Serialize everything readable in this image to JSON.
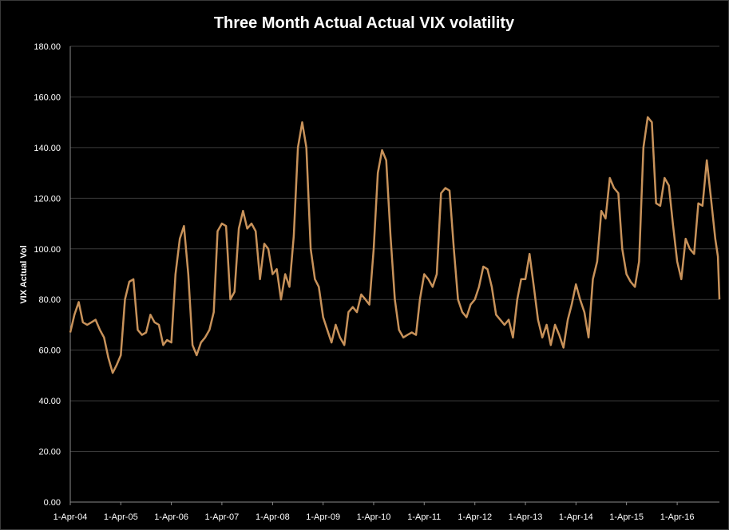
{
  "chart_data": {
    "type": "line",
    "title": "Three Month Actual Actual VIX volatility",
    "xlabel": "",
    "ylabel": "VIX Actual Vol",
    "ylim": [
      0,
      180
    ],
    "yticks": [
      "0.00",
      "20.00",
      "40.00",
      "60.00",
      "80.00",
      "100.00",
      "120.00",
      "140.00",
      "160.00",
      "180.00"
    ],
    "xticks": [
      "1-Apr-04",
      "1-Apr-05",
      "1-Apr-06",
      "1-Apr-07",
      "1-Apr-08",
      "1-Apr-09",
      "1-Apr-10",
      "1-Apr-11",
      "1-Apr-12",
      "1-Apr-13",
      "1-Apr-14",
      "1-Apr-15",
      "1-Apr-16"
    ],
    "x_start": "2004-04-01",
    "x_end": "2017-01-31",
    "grid": true,
    "legend": "none",
    "line_color": "#c8925a",
    "series": [
      {
        "values": [
          [
            "2004-04-01",
            67
          ],
          [
            "2004-05-01",
            74
          ],
          [
            "2004-06-01",
            79
          ],
          [
            "2004-07-01",
            71
          ],
          [
            "2004-08-01",
            70
          ],
          [
            "2004-09-01",
            71
          ],
          [
            "2004-10-01",
            72
          ],
          [
            "2004-11-01",
            68
          ],
          [
            "2004-12-01",
            65
          ],
          [
            "2005-01-01",
            57
          ],
          [
            "2005-02-01",
            51
          ],
          [
            "2005-03-01",
            54
          ],
          [
            "2005-04-01",
            58
          ],
          [
            "2005-05-01",
            80
          ],
          [
            "2005-06-01",
            87
          ],
          [
            "2005-07-01",
            88
          ],
          [
            "2005-08-01",
            68
          ],
          [
            "2005-09-01",
            66
          ],
          [
            "2005-10-01",
            67
          ],
          [
            "2005-11-01",
            74
          ],
          [
            "2005-12-01",
            71
          ],
          [
            "2006-01-01",
            70
          ],
          [
            "2006-02-01",
            62
          ],
          [
            "2006-03-01",
            64
          ],
          [
            "2006-04-01",
            63
          ],
          [
            "2006-05-01",
            90
          ],
          [
            "2006-06-01",
            104
          ],
          [
            "2006-07-01",
            109
          ],
          [
            "2006-08-01",
            90
          ],
          [
            "2006-09-01",
            62
          ],
          [
            "2006-10-01",
            58
          ],
          [
            "2006-11-01",
            63
          ],
          [
            "2006-12-01",
            65
          ],
          [
            "2007-01-01",
            68
          ],
          [
            "2007-02-01",
            75
          ],
          [
            "2007-03-01",
            107
          ],
          [
            "2007-04-01",
            110
          ],
          [
            "2007-05-01",
            109
          ],
          [
            "2007-06-01",
            80
          ],
          [
            "2007-07-01",
            83
          ],
          [
            "2007-08-01",
            108
          ],
          [
            "2007-09-01",
            115
          ],
          [
            "2007-10-01",
            108
          ],
          [
            "2007-11-01",
            110
          ],
          [
            "2007-12-01",
            107
          ],
          [
            "2008-01-01",
            88
          ],
          [
            "2008-02-01",
            102
          ],
          [
            "2008-03-01",
            100
          ],
          [
            "2008-04-01",
            90
          ],
          [
            "2008-05-01",
            92
          ],
          [
            "2008-06-01",
            80
          ],
          [
            "2008-07-01",
            90
          ],
          [
            "2008-08-01",
            85
          ],
          [
            "2008-09-01",
            105
          ],
          [
            "2008-10-01",
            140
          ],
          [
            "2008-11-01",
            150
          ],
          [
            "2008-12-01",
            140
          ],
          [
            "2009-01-01",
            100
          ],
          [
            "2009-02-01",
            88
          ],
          [
            "2009-03-01",
            85
          ],
          [
            "2009-04-01",
            73
          ],
          [
            "2009-05-01",
            68
          ],
          [
            "2009-06-01",
            63
          ],
          [
            "2009-07-01",
            70
          ],
          [
            "2009-08-01",
            65
          ],
          [
            "2009-09-01",
            62
          ],
          [
            "2009-10-01",
            75
          ],
          [
            "2009-11-01",
            77
          ],
          [
            "2009-12-01",
            75
          ],
          [
            "2010-01-01",
            82
          ],
          [
            "2010-02-01",
            80
          ],
          [
            "2010-03-01",
            78
          ],
          [
            "2010-04-01",
            100
          ],
          [
            "2010-05-01",
            130
          ],
          [
            "2010-06-01",
            139
          ],
          [
            "2010-07-01",
            135
          ],
          [
            "2010-08-01",
            105
          ],
          [
            "2010-09-01",
            80
          ],
          [
            "2010-10-01",
            68
          ],
          [
            "2010-11-01",
            65
          ],
          [
            "2010-12-01",
            66
          ],
          [
            "2011-01-01",
            67
          ],
          [
            "2011-02-01",
            66
          ],
          [
            "2011-03-01",
            80
          ],
          [
            "2011-04-01",
            90
          ],
          [
            "2011-05-01",
            88
          ],
          [
            "2011-06-01",
            85
          ],
          [
            "2011-07-01",
            90
          ],
          [
            "2011-08-01",
            122
          ],
          [
            "2011-09-01",
            124
          ],
          [
            "2011-10-01",
            123
          ],
          [
            "2011-11-01",
            100
          ],
          [
            "2011-12-01",
            80
          ],
          [
            "2012-01-01",
            75
          ],
          [
            "2012-02-01",
            73
          ],
          [
            "2012-03-01",
            78
          ],
          [
            "2012-04-01",
            80
          ],
          [
            "2012-05-01",
            85
          ],
          [
            "2012-06-01",
            93
          ],
          [
            "2012-07-01",
            92
          ],
          [
            "2012-08-01",
            85
          ],
          [
            "2012-09-01",
            74
          ],
          [
            "2012-10-01",
            72
          ],
          [
            "2012-11-01",
            70
          ],
          [
            "2012-12-01",
            72
          ],
          [
            "2013-01-01",
            65
          ],
          [
            "2013-02-01",
            80
          ],
          [
            "2013-03-01",
            88
          ],
          [
            "2013-04-01",
            88
          ],
          [
            "2013-05-01",
            98
          ],
          [
            "2013-06-01",
            85
          ],
          [
            "2013-07-01",
            72
          ],
          [
            "2013-08-01",
            65
          ],
          [
            "2013-09-01",
            70
          ],
          [
            "2013-10-01",
            62
          ],
          [
            "2013-11-01",
            70
          ],
          [
            "2013-12-01",
            66
          ],
          [
            "2014-01-01",
            61
          ],
          [
            "2014-02-01",
            72
          ],
          [
            "2014-03-01",
            78
          ],
          [
            "2014-04-01",
            86
          ],
          [
            "2014-05-01",
            80
          ],
          [
            "2014-06-01",
            75
          ],
          [
            "2014-07-01",
            65
          ],
          [
            "2014-08-01",
            88
          ],
          [
            "2014-09-01",
            95
          ],
          [
            "2014-10-01",
            115
          ],
          [
            "2014-11-01",
            112
          ],
          [
            "2014-12-01",
            128
          ],
          [
            "2015-01-01",
            124
          ],
          [
            "2015-02-01",
            122
          ],
          [
            "2015-03-01",
            100
          ],
          [
            "2015-04-01",
            90
          ],
          [
            "2015-05-01",
            87
          ],
          [
            "2015-06-01",
            85
          ],
          [
            "2015-07-01",
            95
          ],
          [
            "2015-08-01",
            140
          ],
          [
            "2015-09-01",
            152
          ],
          [
            "2015-10-01",
            150
          ],
          [
            "2015-11-01",
            118
          ],
          [
            "2015-12-01",
            117
          ],
          [
            "2016-01-01",
            128
          ],
          [
            "2016-02-01",
            125
          ],
          [
            "2016-03-01",
            110
          ],
          [
            "2016-04-01",
            95
          ],
          [
            "2016-05-01",
            88
          ],
          [
            "2016-06-01",
            104
          ],
          [
            "2016-07-01",
            100
          ],
          [
            "2016-08-01",
            98
          ],
          [
            "2016-09-01",
            118
          ],
          [
            "2016-10-01",
            117
          ],
          [
            "2016-11-01",
            135
          ],
          [
            "2016-12-01",
            120
          ],
          [
            "2017-01-01",
            104
          ],
          [
            "2017-01-20",
            97
          ],
          [
            "2017-01-31",
            80
          ]
        ]
      }
    ]
  }
}
